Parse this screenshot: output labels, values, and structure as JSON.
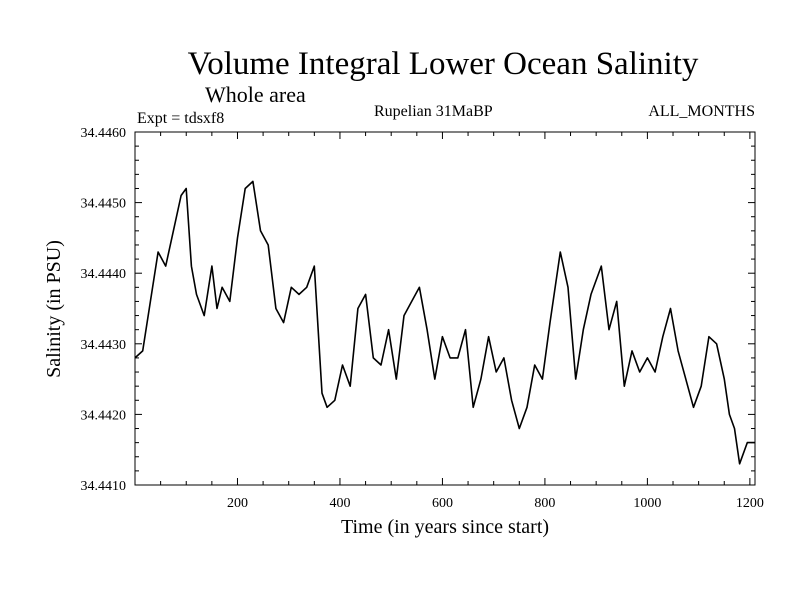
{
  "chart_data": {
    "type": "line",
    "title": "Volume Integral Lower Ocean Salinity",
    "subtitle": "Whole area",
    "expt_label": "Expt = tdsxf8",
    "period_label": "Rupelian  31MaBP",
    "months_label": "ALL_MONTHS",
    "xlabel": "Time (in years since start)",
    "ylabel": "Salinity (in PSU)",
    "xlim": [
      0,
      1210
    ],
    "ylim": [
      34.441,
      34.446
    ],
    "xticks": [
      200,
      400,
      600,
      800,
      1000,
      1200
    ],
    "yticks": [
      34.441,
      34.442,
      34.443,
      34.444,
      34.445,
      34.446
    ],
    "ytick_labels": [
      "34.4410",
      "34.4420",
      "34.4430",
      "34.4440",
      "34.4450",
      "34.4460"
    ],
    "series": [
      {
        "name": "Salinity",
        "color": "#000000",
        "x": [
          0,
          15,
          30,
          45,
          60,
          75,
          90,
          100,
          110,
          120,
          135,
          150,
          160,
          170,
          185,
          200,
          215,
          230,
          245,
          260,
          275,
          290,
          305,
          320,
          335,
          350,
          365,
          375,
          390,
          405,
          420,
          435,
          450,
          465,
          480,
          495,
          510,
          525,
          540,
          555,
          570,
          585,
          600,
          615,
          630,
          645,
          660,
          675,
          690,
          705,
          720,
          735,
          750,
          765,
          780,
          795,
          810,
          830,
          845,
          860,
          875,
          890,
          910,
          925,
          940,
          955,
          970,
          985,
          1000,
          1015,
          1030,
          1045,
          1060,
          1075,
          1090,
          1105,
          1120,
          1135,
          1150,
          1160,
          1170,
          1180,
          1195,
          1210
        ],
        "values": [
          34.4428,
          34.4429,
          34.4436,
          34.4443,
          34.4441,
          34.4446,
          34.4451,
          34.4452,
          34.4441,
          34.4437,
          34.4434,
          34.4441,
          34.4435,
          34.4438,
          34.4436,
          34.4445,
          34.4452,
          34.4453,
          34.4446,
          34.4444,
          34.4435,
          34.4433,
          34.4438,
          34.4437,
          34.4438,
          34.4441,
          34.4423,
          34.4421,
          34.4422,
          34.4427,
          34.4424,
          34.4435,
          34.4437,
          34.4428,
          34.4427,
          34.4432,
          34.4425,
          34.4434,
          34.4436,
          34.4438,
          34.4432,
          34.4425,
          34.4431,
          34.4428,
          34.4428,
          34.4432,
          34.4421,
          34.4425,
          34.4431,
          34.4426,
          34.4428,
          34.4422,
          34.4418,
          34.4421,
          34.4427,
          34.4425,
          34.4433,
          34.4443,
          34.4438,
          34.4425,
          34.4432,
          34.4437,
          34.4441,
          34.4432,
          34.4436,
          34.4424,
          34.4429,
          34.4426,
          34.4428,
          34.4426,
          34.4431,
          34.4435,
          34.4429,
          34.4425,
          34.4421,
          34.4424,
          34.4431,
          34.443,
          34.4425,
          34.442,
          34.4418,
          34.4413,
          34.4416,
          34.4416
        ]
      }
    ]
  }
}
